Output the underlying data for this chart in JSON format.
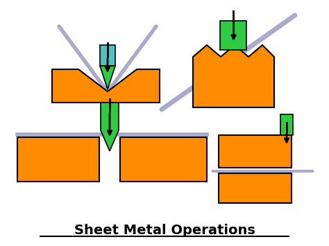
{
  "title": "Sheet Metal Operations",
  "bg_color": "#ffffff",
  "orange": "#FF8C00",
  "green": "#2ECC40",
  "blue_green": "#4FC3C3",
  "gray_line": "#AAAACC",
  "black": "#000000"
}
